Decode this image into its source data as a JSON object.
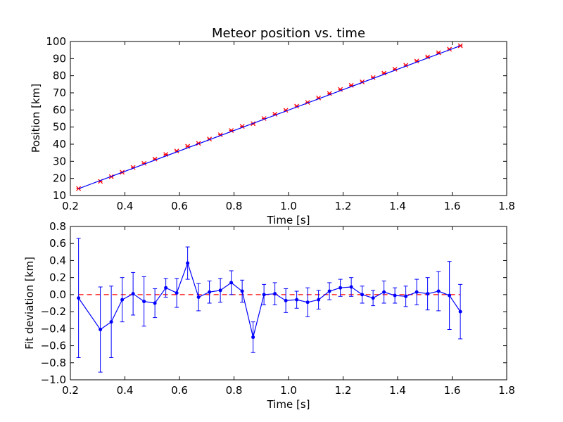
{
  "chart_data": [
    {
      "type": "line",
      "title": "Meteor position vs. time",
      "xlabel": "Time [s]",
      "ylabel": "Position [km]",
      "xlim": [
        0.2,
        1.8
      ],
      "ylim": [
        10,
        100
      ],
      "xticks": [
        "0.2",
        "0.4",
        "0.6",
        "0.8",
        "1.0",
        "1.2",
        "1.4",
        "1.6",
        "1.8"
      ],
      "yticks": [
        "10",
        "20",
        "30",
        "40",
        "50",
        "60",
        "70",
        "80",
        "90",
        "100"
      ],
      "grid": false,
      "series": [
        {
          "style": "markers",
          "color": "#ff0000",
          "x": [
            0.23,
            0.31,
            0.35,
            0.39,
            0.43,
            0.47,
            0.51,
            0.55,
            0.59,
            0.63,
            0.67,
            0.71,
            0.75,
            0.79,
            0.83,
            0.87,
            0.91,
            0.95,
            0.99,
            1.03,
            1.07,
            1.11,
            1.15,
            1.19,
            1.23,
            1.27,
            1.31,
            1.35,
            1.39,
            1.43,
            1.47,
            1.51,
            1.55,
            1.59,
            1.63
          ],
          "y": [
            14.1,
            18.3,
            21.0,
            23.6,
            26.4,
            28.8,
            31.3,
            34.0,
            36.0,
            38.8,
            40.5,
            43.0,
            45.5,
            48.0,
            50.4,
            52.0,
            55.0,
            57.5,
            59.8,
            62.2,
            64.4,
            67.0,
            69.6,
            72.0,
            74.4,
            76.4,
            78.9,
            81.5,
            83.8,
            86.1,
            88.6,
            91.0,
            93.4,
            95.5,
            97.5
          ]
        },
        {
          "style": "line",
          "color": "#0000ff",
          "x": [
            0.23,
            1.63
          ],
          "y": [
            14.0,
            97.5
          ]
        }
      ]
    },
    {
      "type": "line",
      "title": "",
      "xlabel": "Time [s]",
      "ylabel": "Fit deviation [km]",
      "xlim": [
        0.2,
        1.8
      ],
      "ylim": [
        -1.0,
        0.8
      ],
      "xticks": [
        "0.2",
        "0.4",
        "0.6",
        "0.8",
        "1.0",
        "1.2",
        "1.4",
        "1.6",
        "1.8"
      ],
      "yticks": [
        "−1.0",
        "−0.8",
        "−0.6",
        "−0.4",
        "−0.2",
        "0.0",
        "0.2",
        "0.4",
        "0.6",
        "0.8"
      ],
      "grid": false,
      "reference_line": {
        "y": 0,
        "color": "#ff0000",
        "dash": "dashed"
      },
      "series": [
        {
          "style": "line+markers+errorbars",
          "color": "#0000ff",
          "x": [
            0.23,
            0.31,
            0.35,
            0.39,
            0.43,
            0.47,
            0.51,
            0.55,
            0.59,
            0.63,
            0.67,
            0.71,
            0.75,
            0.79,
            0.83,
            0.87,
            0.91,
            0.95,
            0.99,
            1.03,
            1.07,
            1.11,
            1.15,
            1.19,
            1.23,
            1.27,
            1.31,
            1.35,
            1.39,
            1.43,
            1.47,
            1.51,
            1.55,
            1.59,
            1.63
          ],
          "y": [
            -0.04,
            -0.41,
            -0.32,
            -0.06,
            0.01,
            -0.08,
            -0.1,
            0.08,
            0.02,
            0.37,
            -0.03,
            0.03,
            0.05,
            0.14,
            0.04,
            -0.5,
            0.0,
            0.01,
            -0.07,
            -0.06,
            -0.09,
            -0.06,
            0.04,
            0.08,
            0.09,
            0.0,
            -0.04,
            0.03,
            -0.01,
            -0.02,
            0.03,
            0.01,
            0.04,
            -0.01,
            -0.2
          ],
          "err": [
            0.7,
            0.5,
            0.42,
            0.26,
            0.25,
            0.29,
            0.17,
            0.11,
            0.17,
            0.19,
            0.16,
            0.13,
            0.14,
            0.14,
            0.13,
            0.18,
            0.12,
            0.13,
            0.14,
            0.1,
            0.17,
            0.11,
            0.1,
            0.1,
            0.11,
            0.1,
            0.09,
            0.13,
            0.09,
            0.12,
            0.15,
            0.19,
            0.23,
            0.4,
            0.32
          ]
        }
      ]
    }
  ]
}
